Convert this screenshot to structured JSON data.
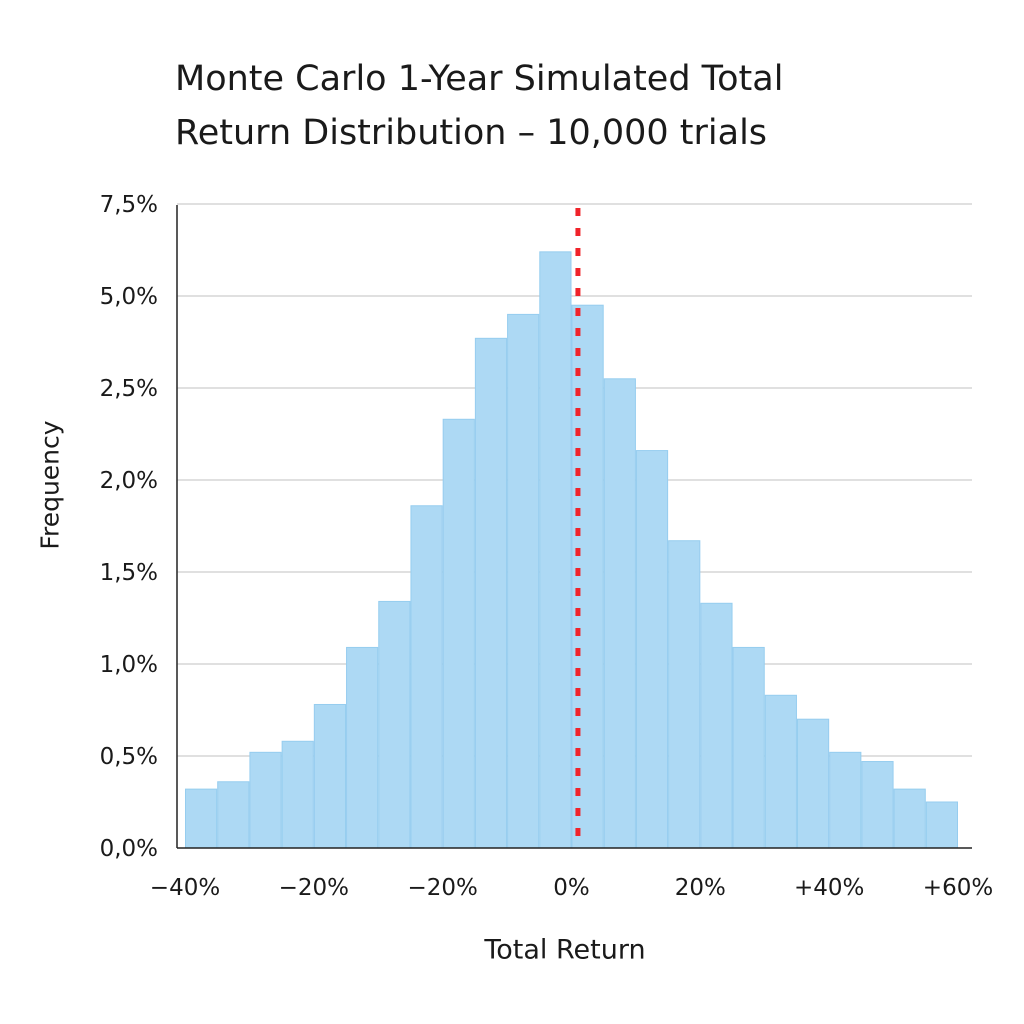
{
  "chart_data": {
    "type": "bar",
    "title_lines": [
      "Monte Carlo 1-Year Simulated Total",
      "Return Distribution – 10,000 trials"
    ],
    "xlabel": "Total Return",
    "ylabel": "Frequency",
    "x_tick_labels": [
      "−40%",
      "−20%",
      "−20%",
      "0%",
      "20%",
      "+40%",
      "+60%"
    ],
    "y_tick_labels": [
      "0,0%",
      "0,5%",
      "1,0%",
      "1,5%",
      "2,0%",
      "2,5%",
      "5,0%",
      "7,5%"
    ],
    "ylim": [
      0,
      3.5
    ],
    "grid": true,
    "values": [
      0.32,
      0.36,
      0.52,
      0.58,
      0.78,
      1.09,
      1.34,
      1.86,
      2.33,
      2.77,
      2.9,
      3.24,
      2.95,
      2.55,
      2.16,
      1.67,
      1.33,
      1.09,
      0.83,
      0.7,
      0.52,
      0.47,
      0.32,
      0.25
    ],
    "reference_line": {
      "position_bin_edge": 12.2,
      "style": "dashed",
      "color": "#f0232a"
    },
    "bar_color": "#add9f4",
    "bar_edge_color": "#96cdef"
  }
}
